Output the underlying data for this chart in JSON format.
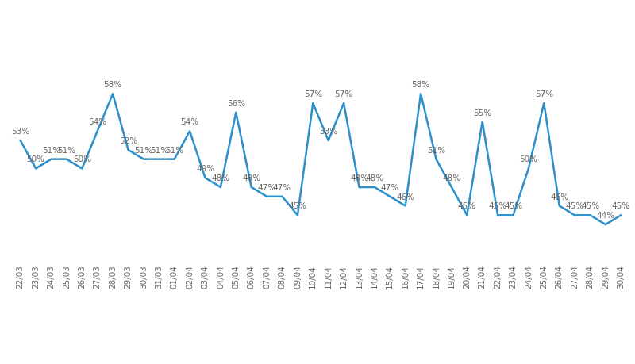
{
  "dates": [
    "22/03",
    "23/03",
    "24/03",
    "25/03",
    "26/03",
    "27/03",
    "28/03",
    "29/03",
    "30/03",
    "31/03",
    "01/04",
    "02/04",
    "03/04",
    "04/04",
    "05/04",
    "06/04",
    "07/04",
    "08/04",
    "09/04",
    "10/04",
    "11/04",
    "12/04",
    "13/04",
    "14/04",
    "15/04",
    "16/04",
    "17/04",
    "18/04",
    "19/04",
    "20/04",
    "21/04",
    "22/04",
    "23/04",
    "24/04",
    "25/04",
    "26/04",
    "27/04",
    "28/04",
    "29/04",
    "30/04"
  ],
  "values": [
    53,
    50,
    51,
    51,
    50,
    54,
    58,
    52,
    51,
    51,
    51,
    54,
    49,
    48,
    56,
    48,
    47,
    47,
    45,
    57,
    53,
    57,
    48,
    48,
    47,
    46,
    58,
    51,
    48,
    45,
    55,
    45,
    45,
    50,
    57,
    46,
    45,
    45,
    44,
    45
  ],
  "line_color": "#2b8fcb",
  "background_color": "#ffffff",
  "label_color": "#666666",
  "grid_color": "#e0e0e0",
  "label_fontsize": 7.5,
  "tick_fontsize": 7.5
}
